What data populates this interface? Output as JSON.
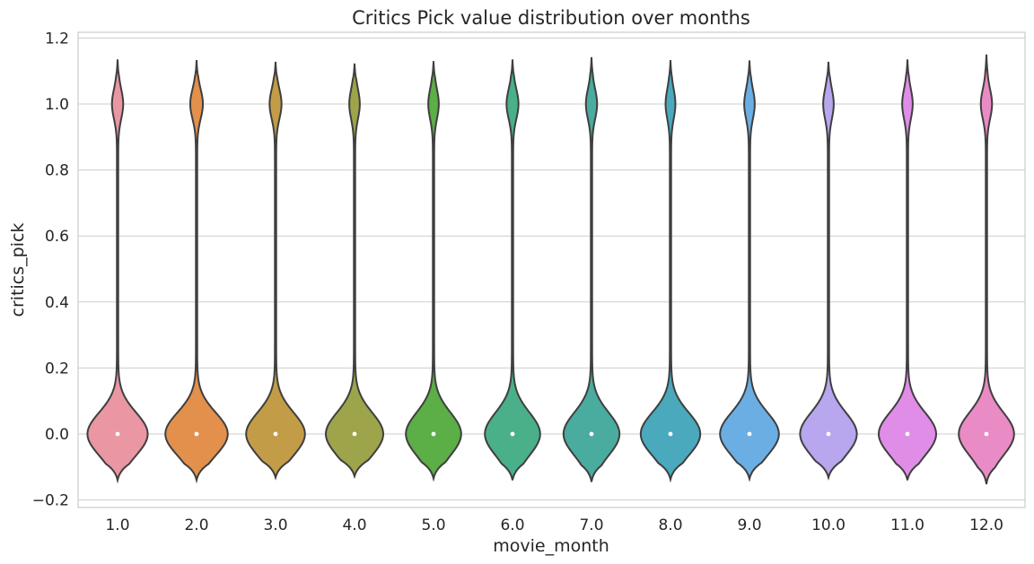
{
  "chart_data": {
    "type": "violin",
    "title": "Critics Pick value distribution over months",
    "xlabel": "movie_month",
    "ylabel": "critics_pick",
    "categories": [
      "1.0",
      "2.0",
      "3.0",
      "4.0",
      "5.0",
      "6.0",
      "7.0",
      "8.0",
      "9.0",
      "10.0",
      "11.0",
      "12.0"
    ],
    "ylim": [
      -0.22,
      1.22
    ],
    "yticks": [
      -0.2,
      0.0,
      0.2,
      0.4,
      0.6,
      0.8,
      1.0,
      1.2
    ],
    "ytick_labels": [
      "−0.2",
      "0.0",
      "0.2",
      "0.4",
      "0.6",
      "0.8",
      "1.0",
      "1.2"
    ],
    "grid": "horizontal",
    "colors": [
      "#ea96a3",
      "#e3904c",
      "#c39c48",
      "#9da44a",
      "#5cae47",
      "#4ab089",
      "#4aab9f",
      "#4aa9bc",
      "#6aaee4",
      "#b8a6ef",
      "#e08de8",
      "#e98bc4"
    ],
    "series": [
      {
        "category": "1.0",
        "min": -0.14,
        "max": 1.135,
        "median": 0.0,
        "width0": 0.83,
        "width1": 0.14
      },
      {
        "category": "2.0",
        "min": -0.14,
        "max": 1.133,
        "median": 0.0,
        "width0": 0.86,
        "width1": 0.16
      },
      {
        "category": "3.0",
        "min": -0.132,
        "max": 1.128,
        "median": 0.0,
        "width0": 0.81,
        "width1": 0.15
      },
      {
        "category": "4.0",
        "min": -0.128,
        "max": 1.123,
        "median": 0.0,
        "width0": 0.79,
        "width1": 0.13
      },
      {
        "category": "5.0",
        "min": -0.135,
        "max": 1.13,
        "median": 0.0,
        "width0": 0.76,
        "width1": 0.13
      },
      {
        "category": "6.0",
        "min": -0.14,
        "max": 1.135,
        "median": 0.0,
        "width0": 0.76,
        "width1": 0.15
      },
      {
        "category": "7.0",
        "min": -0.145,
        "max": 1.142,
        "median": 0.0,
        "width0": 0.77,
        "width1": 0.14
      },
      {
        "category": "8.0",
        "min": -0.138,
        "max": 1.133,
        "median": 0.0,
        "width0": 0.82,
        "width1": 0.12
      },
      {
        "category": "9.0",
        "min": -0.136,
        "max": 1.132,
        "median": 0.0,
        "width0": 0.81,
        "width1": 0.13
      },
      {
        "category": "10.0",
        "min": -0.132,
        "max": 1.128,
        "median": 0.0,
        "width0": 0.78,
        "width1": 0.13
      },
      {
        "category": "11.0",
        "min": -0.14,
        "max": 1.135,
        "median": 0.0,
        "width0": 0.79,
        "width1": 0.13
      },
      {
        "category": "12.0",
        "min": -0.152,
        "max": 1.15,
        "median": 0.0,
        "width0": 0.76,
        "width1": 0.14
      }
    ]
  }
}
